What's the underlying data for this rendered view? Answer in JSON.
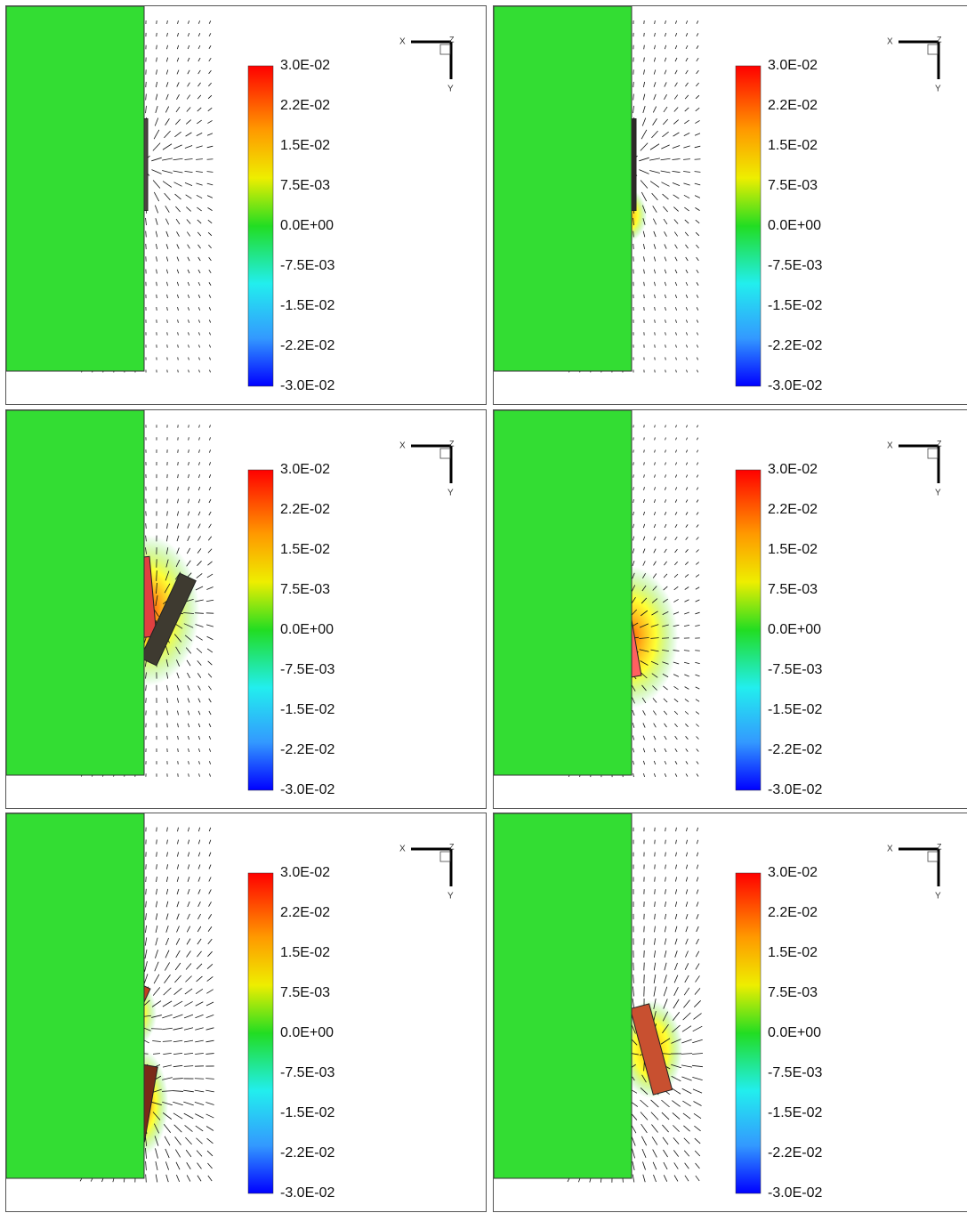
{
  "panels": [
    {
      "colorbar_labels": [
        "3.0E-02",
        "2.2E-02",
        "1.5E-02",
        "7.5E-03",
        "0.0E+00",
        "-7.5E-03",
        "-1.5E-02",
        "-2.2E-02",
        "-3.0E-02"
      ],
      "axes": {
        "x": "X",
        "y": "Y",
        "z": "Z"
      }
    },
    {
      "colorbar_labels": [
        "3.0E-02",
        "2.2E-02",
        "1.5E-02",
        "7.5E-03",
        "0.0E+00",
        "-7.5E-03",
        "-1.5E-02",
        "-2.2E-02",
        "-3.0E-02"
      ],
      "axes": {
        "x": "X",
        "y": "Y",
        "z": "Z"
      }
    },
    {
      "colorbar_labels": [
        "3.0E-02",
        "2.2E-02",
        "1.5E-02",
        "7.5E-03",
        "0.0E+00",
        "-7.5E-03",
        "-1.5E-02",
        "-2.2E-02",
        "-3.0E-02"
      ],
      "axes": {
        "x": "X",
        "y": "Y",
        "z": "Z"
      }
    },
    {
      "colorbar_labels": [
        "3.0E-02",
        "2.2E-02",
        "1.5E-02",
        "7.5E-03",
        "0.0E+00",
        "-7.5E-03",
        "-1.5E-02",
        "-2.2E-02",
        "-3.0E-02"
      ],
      "axes": {
        "x": "X",
        "y": "Y",
        "z": "Z"
      }
    },
    {
      "colorbar_labels": [
        "3.0E-02",
        "2.2E-02",
        "1.5E-02",
        "7.5E-03",
        "0.0E+00",
        "-7.5E-03",
        "-1.5E-02",
        "-2.2E-02",
        "-3.0E-02"
      ],
      "axes": {
        "x": "X",
        "y": "Y",
        "z": "Z"
      }
    },
    {
      "colorbar_labels": [
        "3.0E-02",
        "2.2E-02",
        "1.5E-02",
        "7.5E-03",
        "0.0E+00",
        "-7.5E-03",
        "-1.5E-02",
        "-2.2E-02",
        "-3.0E-02"
      ],
      "axes": {
        "x": "X",
        "y": "Y",
        "z": "Z"
      }
    }
  ]
}
